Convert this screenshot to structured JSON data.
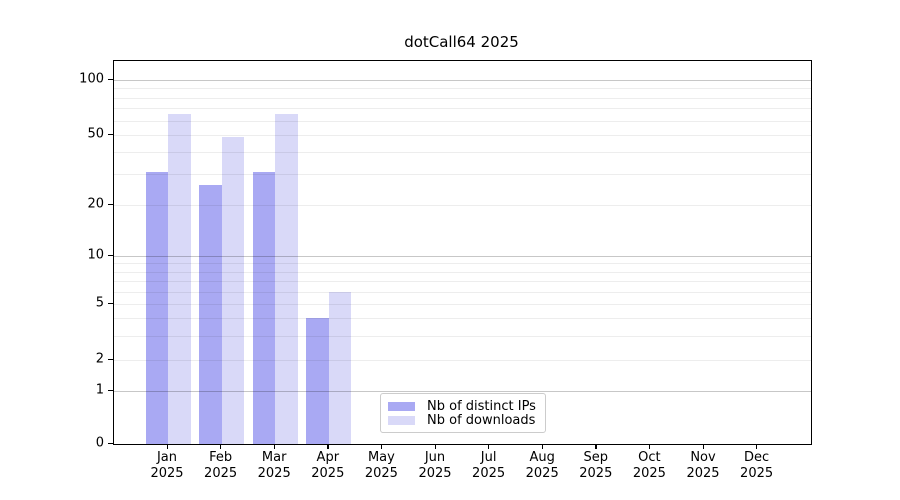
{
  "chart_data": {
    "type": "bar",
    "title": "dotCall64 2025",
    "categories": [
      "Jan",
      "Feb",
      "Mar",
      "Apr",
      "May",
      "Jun",
      "Jul",
      "Aug",
      "Sep",
      "Oct",
      "Nov",
      "Dec"
    ],
    "year_label": "2025",
    "series": [
      {
        "name": "Nb of distinct IPs",
        "color": "#a9a9f3",
        "values": [
          31,
          26,
          31,
          4,
          0,
          0,
          0,
          0,
          0,
          0,
          0,
          0
        ]
      },
      {
        "name": "Nb of downloads",
        "color": "#d9d9f8",
        "values": [
          65,
          49,
          65,
          6,
          0,
          0,
          0,
          0,
          0,
          0,
          0,
          0
        ]
      }
    ],
    "y_ticks": [
      0,
      1,
      2,
      5,
      10,
      20,
      50,
      100
    ],
    "ylim": [
      0,
      130
    ],
    "yscale": "log-like",
    "grid": "horizontal, minor lines at 2-9 and 20-90, major lines at 1, 10, 100",
    "legend_position": "inside-bottom-center",
    "xlabel": "",
    "ylabel": ""
  },
  "colors": {
    "axis": "#000000",
    "grid_major": "rgba(0,0,0,0.22)",
    "grid_minor": "rgba(0,0,0,0.07)",
    "background": "#ffffff",
    "legend_border": "#cccccc"
  }
}
